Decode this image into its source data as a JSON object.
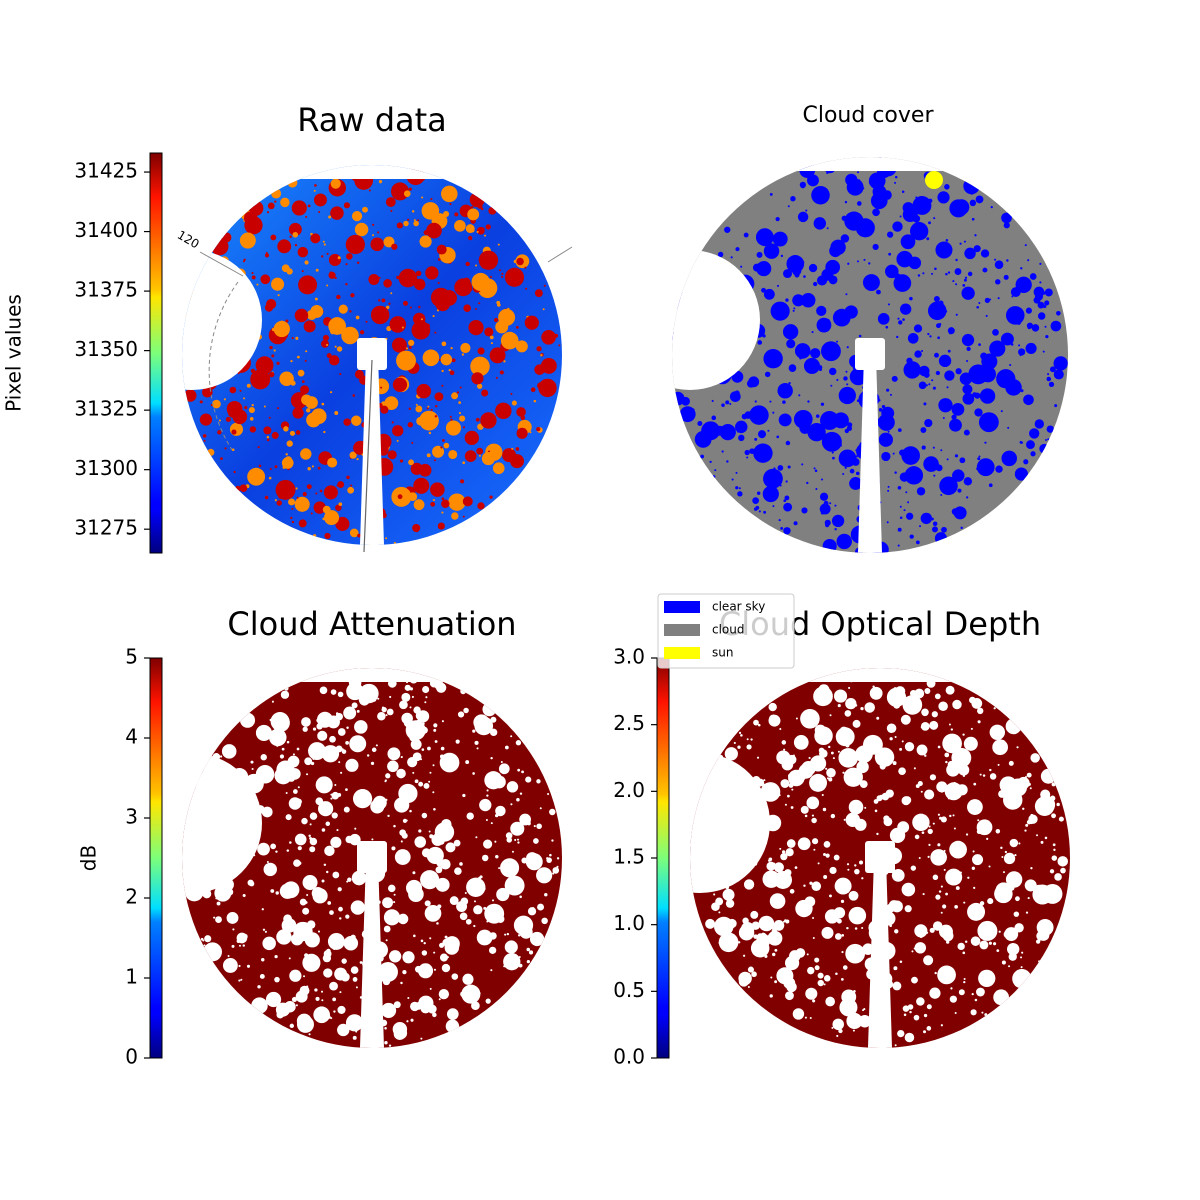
{
  "chart_data": [
    {
      "type": "image",
      "title": "Raw data",
      "colorbar_label": "Pixel values",
      "cmap": "jet",
      "clim": [
        31265,
        31433
      ],
      "cticks": [
        31275,
        31300,
        31325,
        31350,
        31375,
        31400,
        31425
      ],
      "annotations": [
        "120"
      ]
    },
    {
      "type": "image",
      "title": "Cloud cover",
      "classes": [
        {
          "name": "clear sky",
          "color": "#0000ff"
        },
        {
          "name": "cloud",
          "color": "#808080"
        },
        {
          "name": "sun",
          "color": "#ffff00"
        }
      ]
    },
    {
      "type": "image",
      "title": "Cloud Attenuation",
      "colorbar_label": "dB",
      "cmap": "jet",
      "clim": [
        0,
        5
      ],
      "cticks": [
        0,
        1,
        2,
        3,
        4,
        5
      ]
    },
    {
      "type": "image",
      "title": "Cloud Optical Depth",
      "cmap": "jet",
      "clim": [
        0,
        3
      ],
      "cticks": [
        {
          "value": 0,
          "label": "0.0"
        },
        {
          "value": 0.5,
          "label": "0.5"
        },
        {
          "value": 1,
          "label": "1.0"
        },
        {
          "value": 1.5,
          "label": "1.5"
        },
        {
          "value": 2,
          "label": "2.0"
        },
        {
          "value": 2.5,
          "label": "2.5"
        },
        {
          "value": 3,
          "label": "3.0"
        }
      ]
    }
  ]
}
